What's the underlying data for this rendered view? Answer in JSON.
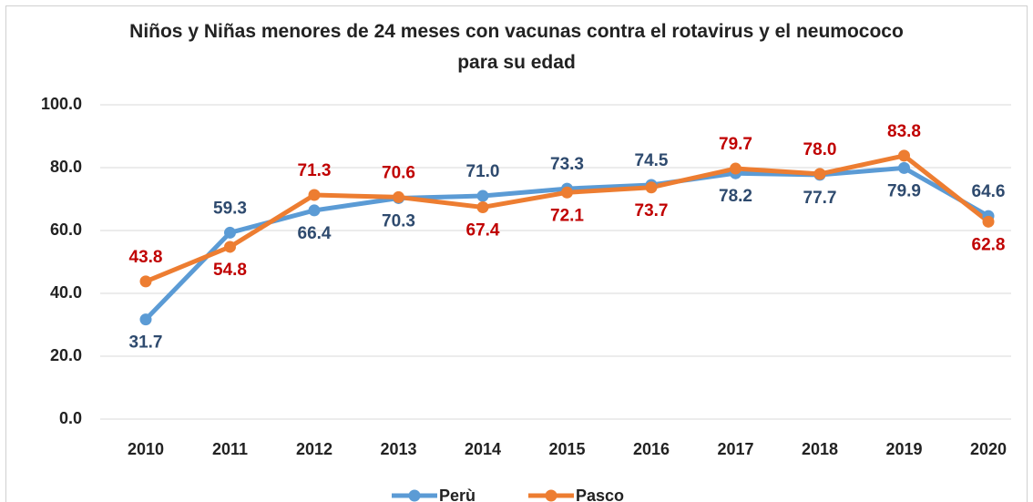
{
  "chart_data": {
    "type": "line",
    "title": "Niños y Niñas menores de 24 meses con vacunas contra el rotavirus y el neumococo para su edad",
    "categories": [
      "2010",
      "2011",
      "2012",
      "2013",
      "2014",
      "2015",
      "2016",
      "2017",
      "2018",
      "2019",
      "2020"
    ],
    "series": [
      {
        "name": "Perù",
        "color": "#5b9bd5",
        "label_color": "#2e4a6e",
        "values": [
          31.7,
          59.3,
          66.4,
          70.3,
          71.0,
          73.3,
          74.5,
          78.2,
          77.7,
          79.9,
          64.6
        ],
        "value_labels": [
          "31.7",
          "59.3",
          "66.4",
          "70.3",
          "71.0",
          "73.3",
          "74.5",
          "78.2",
          "77.7",
          "79.9",
          "64.6"
        ]
      },
      {
        "name": "Pasco",
        "color": "#ed7d31",
        "label_color": "#c00000",
        "values": [
          43.8,
          54.8,
          71.3,
          70.6,
          67.4,
          72.1,
          73.7,
          79.7,
          78.0,
          83.8,
          62.8
        ],
        "value_labels": [
          "43.8",
          "54.8",
          "71.3",
          "70.6",
          "67.4",
          "72.1",
          "73.7",
          "79.7",
          "78.0",
          "83.8",
          "62.8"
        ]
      }
    ],
    "ylim": [
      0,
      100
    ],
    "yticks": [
      {
        "value": 0,
        "label": "0.0"
      },
      {
        "value": 20,
        "label": "20.0"
      },
      {
        "value": 40,
        "label": "40.0"
      },
      {
        "value": 60,
        "label": "60.0"
      },
      {
        "value": 80,
        "label": "80.0"
      },
      {
        "value": 100,
        "label": "100.0"
      }
    ],
    "grid": true,
    "legend": "bottom"
  }
}
